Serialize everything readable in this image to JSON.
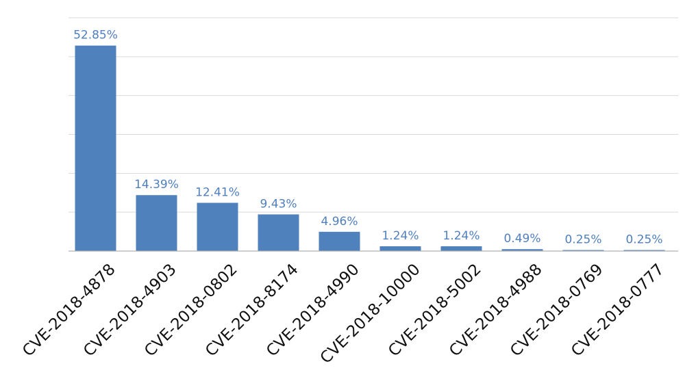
{
  "chart_data": {
    "type": "bar",
    "categories": [
      "CVE-2018-4878",
      "CVE-2018-4903",
      "CVE-2018-0802",
      "CVE-2018-8174",
      "CVE-2018-4990",
      "CVE-2018-10000",
      "CVE-2018-5002",
      "CVE-2018-4988",
      "CVE-2018-0769",
      "CVE-2018-0777"
    ],
    "values": [
      52.85,
      14.39,
      12.41,
      9.43,
      4.96,
      1.24,
      1.24,
      0.49,
      0.25,
      0.25
    ],
    "data_labels": [
      "52.85%",
      "14.39%",
      "12.41%",
      "9.43%",
      "4.96%",
      "1.24%",
      "1.24%",
      "0.49%",
      "0.25%",
      "0.25%"
    ],
    "ylim": [
      0,
      60
    ],
    "grid": true,
    "colors": {
      "bar": "#4f81bd",
      "label": "#4f7fbf",
      "grid": "#d9d9d9"
    }
  }
}
